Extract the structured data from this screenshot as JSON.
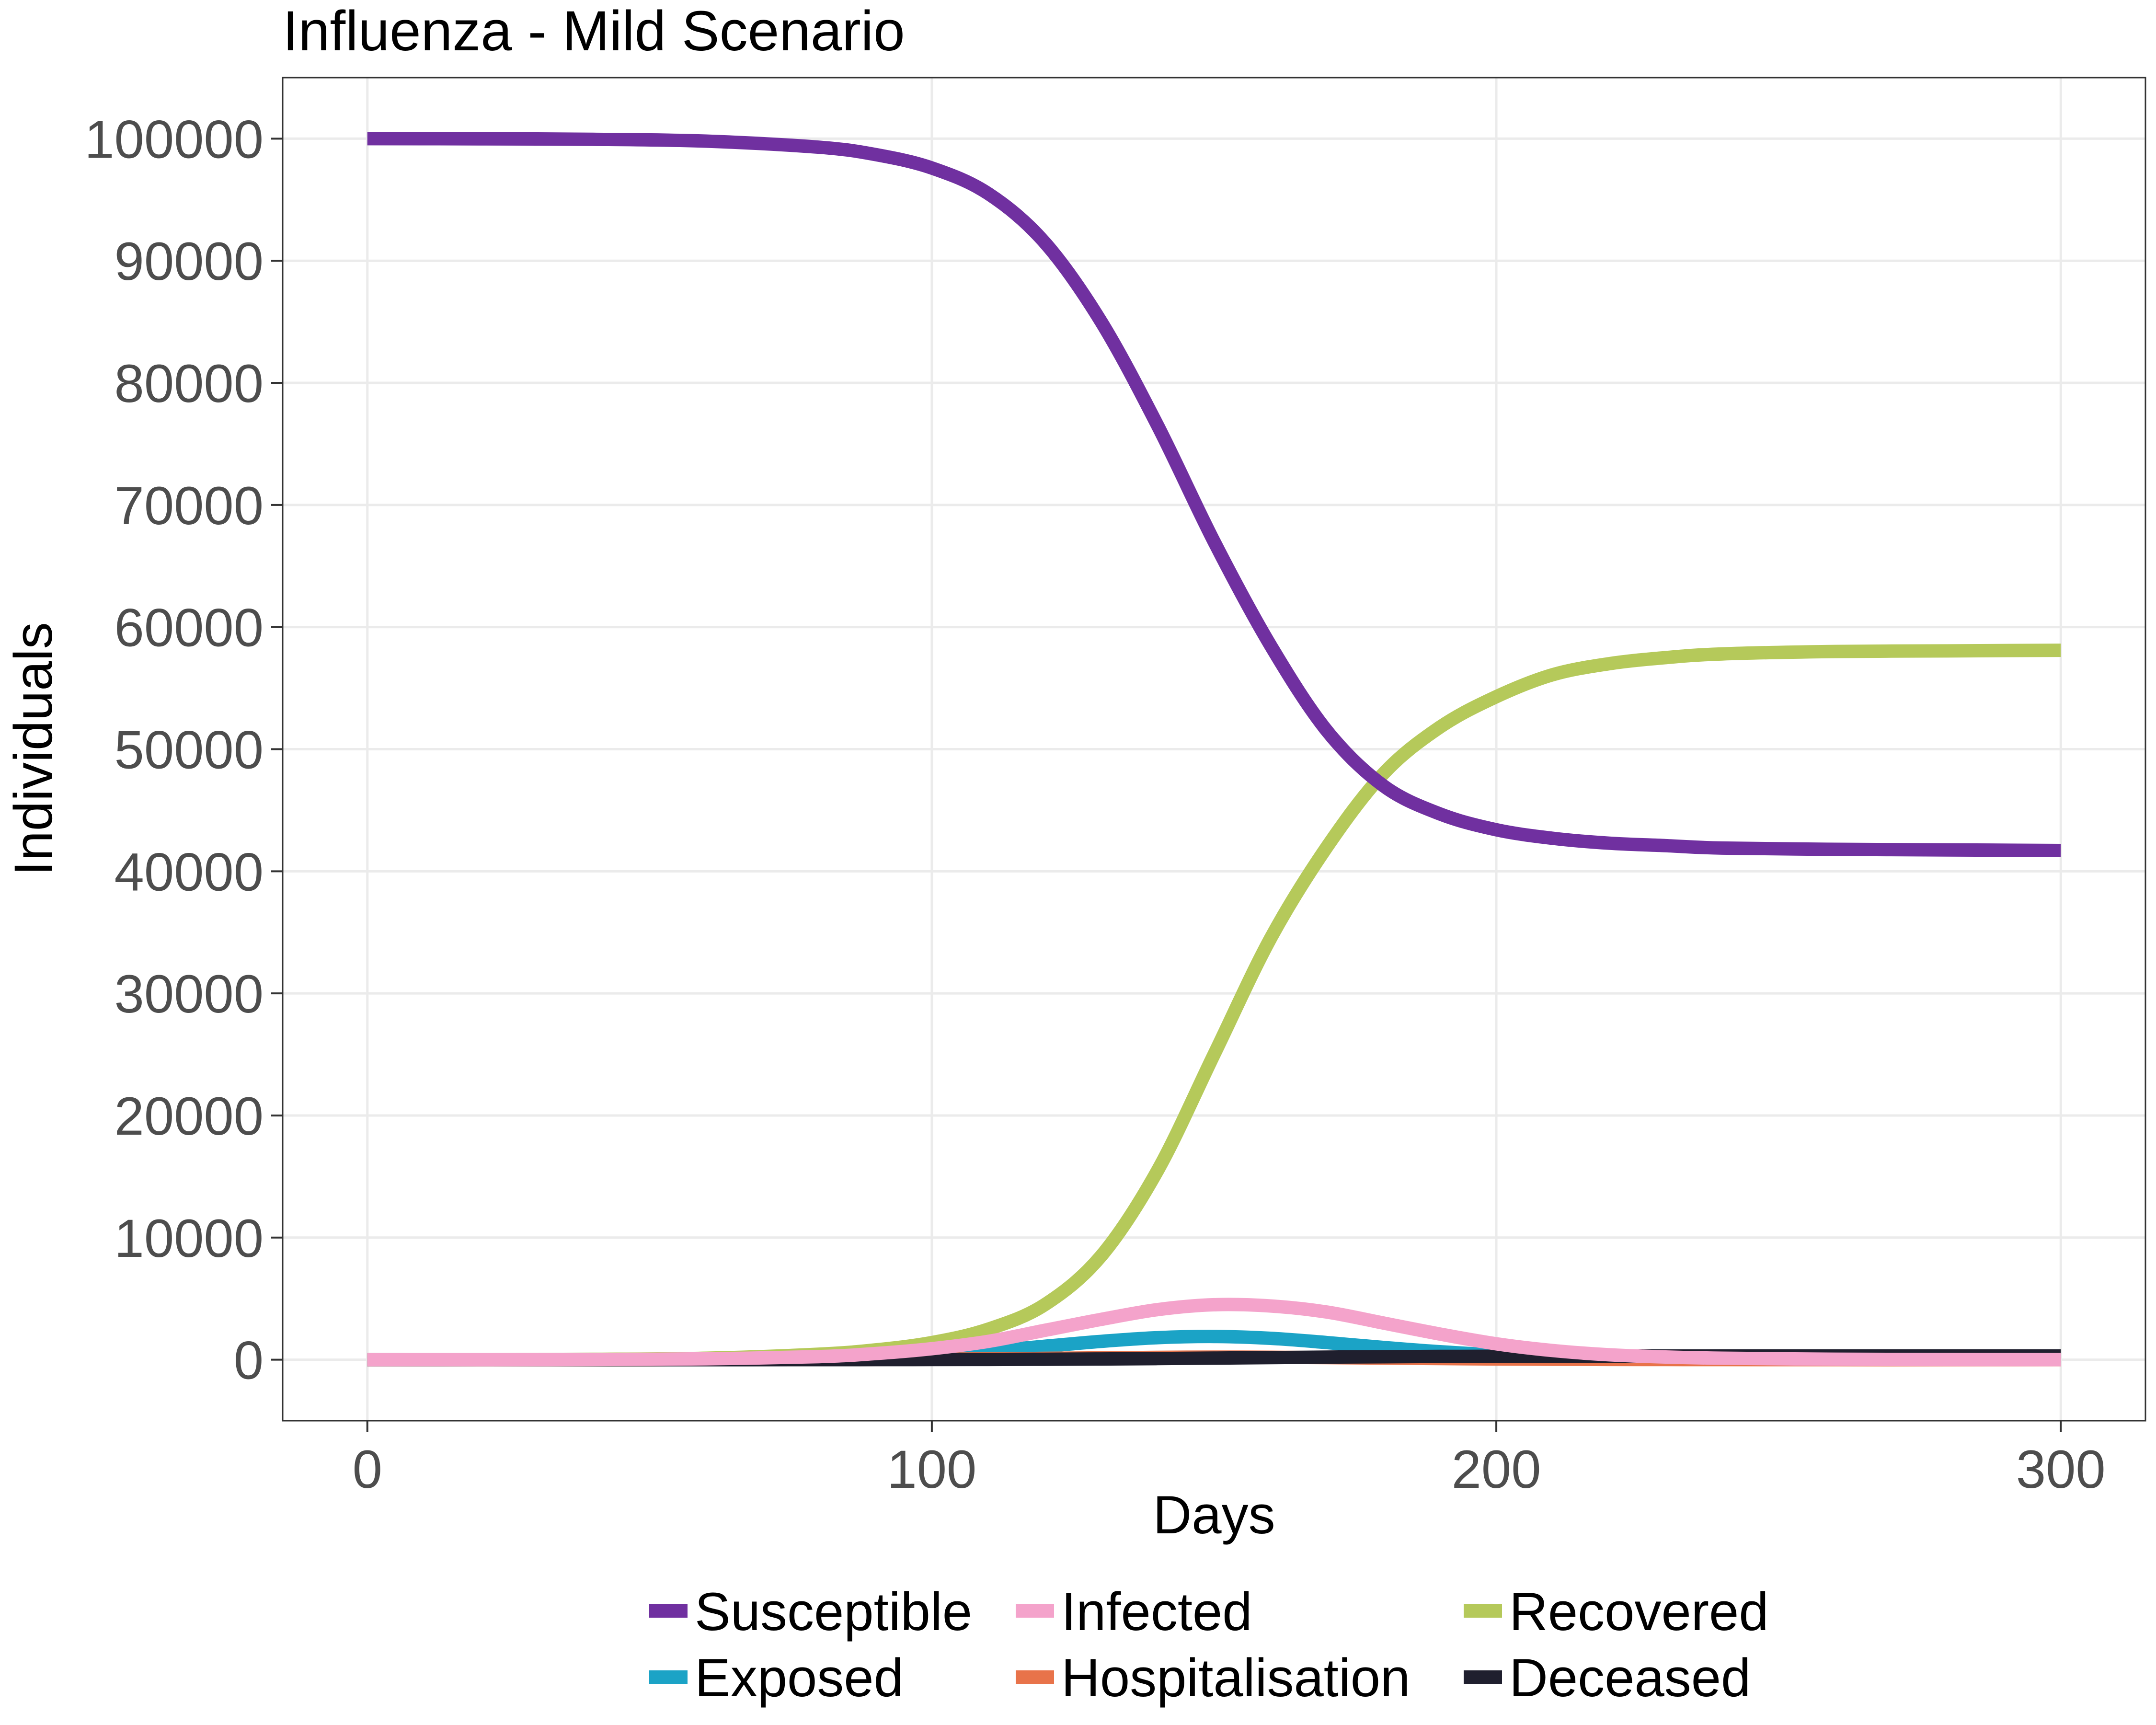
{
  "chart_data": {
    "type": "line",
    "title": "Influenza - Mild Scenario",
    "xlabel": "Days",
    "ylabel": "Individuals",
    "xlim": [
      -15,
      315
    ],
    "ylim": [
      -5000,
      105000
    ],
    "xticks": [
      0,
      100,
      200,
      300
    ],
    "xtick_labels": [
      "0",
      "100",
      "200",
      "300"
    ],
    "yticks": [
      0,
      10000,
      20000,
      30000,
      40000,
      50000,
      60000,
      70000,
      80000,
      90000,
      100000
    ],
    "ytick_labels": [
      "0",
      "10000",
      "20000",
      "30000",
      "40000",
      "50000",
      "60000",
      "70000",
      "80000",
      "90000",
      "100000"
    ],
    "grid": true,
    "legend_position": "bottom",
    "x": [
      0,
      20,
      40,
      60,
      80,
      90,
      100,
      110,
      120,
      130,
      140,
      150,
      160,
      170,
      180,
      190,
      200,
      210,
      220,
      230,
      240,
      260,
      280,
      300
    ],
    "series": [
      {
        "name": "Susceptible",
        "color": "#7030a0",
        "values": [
          100000,
          99990,
          99950,
          99800,
          99300,
          98700,
          97600,
          95500,
          91500,
          85000,
          76500,
          67000,
          58500,
          51500,
          47000,
          44700,
          43400,
          42700,
          42300,
          42100,
          41900,
          41800,
          41750,
          41700
        ]
      },
      {
        "name": "Exposed",
        "color": "#1ba3c6",
        "values": [
          0,
          2,
          10,
          30,
          110,
          230,
          420,
          700,
          1100,
          1500,
          1800,
          1900,
          1750,
          1400,
          1000,
          650,
          400,
          230,
          120,
          60,
          30,
          10,
          4,
          2
        ]
      },
      {
        "name": "Infected",
        "color": "#f4a3cb",
        "values": [
          0,
          5,
          20,
          70,
          250,
          500,
          900,
          1500,
          2400,
          3300,
          4100,
          4500,
          4400,
          3900,
          3000,
          2100,
          1300,
          750,
          400,
          220,
          120,
          40,
          15,
          5
        ]
      },
      {
        "name": "Hospitalisation",
        "color": "#e8734a",
        "values": [
          0,
          0,
          1,
          3,
          10,
          20,
          40,
          70,
          110,
          150,
          190,
          210,
          200,
          170,
          130,
          90,
          60,
          35,
          20,
          10,
          6,
          2,
          1,
          0
        ]
      },
      {
        "name": "Recovered",
        "color": "#b5c95a",
        "values": [
          0,
          5,
          30,
          120,
          450,
          800,
          1400,
          2500,
          4500,
          8500,
          15500,
          25000,
          34500,
          42000,
          48000,
          51800,
          54300,
          56100,
          57000,
          57500,
          57800,
          58000,
          58050,
          58100
        ]
      },
      {
        "name": "Deceased",
        "color": "#1f1f2e",
        "values": [
          0,
          0,
          0,
          1,
          3,
          6,
          11,
          20,
          35,
          60,
          90,
          130,
          170,
          210,
          240,
          265,
          280,
          290,
          295,
          298,
          300,
          300,
          300,
          300
        ]
      }
    ],
    "draw_order": [
      "Recovered",
      "Exposed",
      "Hospitalisation",
      "Deceased",
      "Infected",
      "Susceptible"
    ]
  }
}
